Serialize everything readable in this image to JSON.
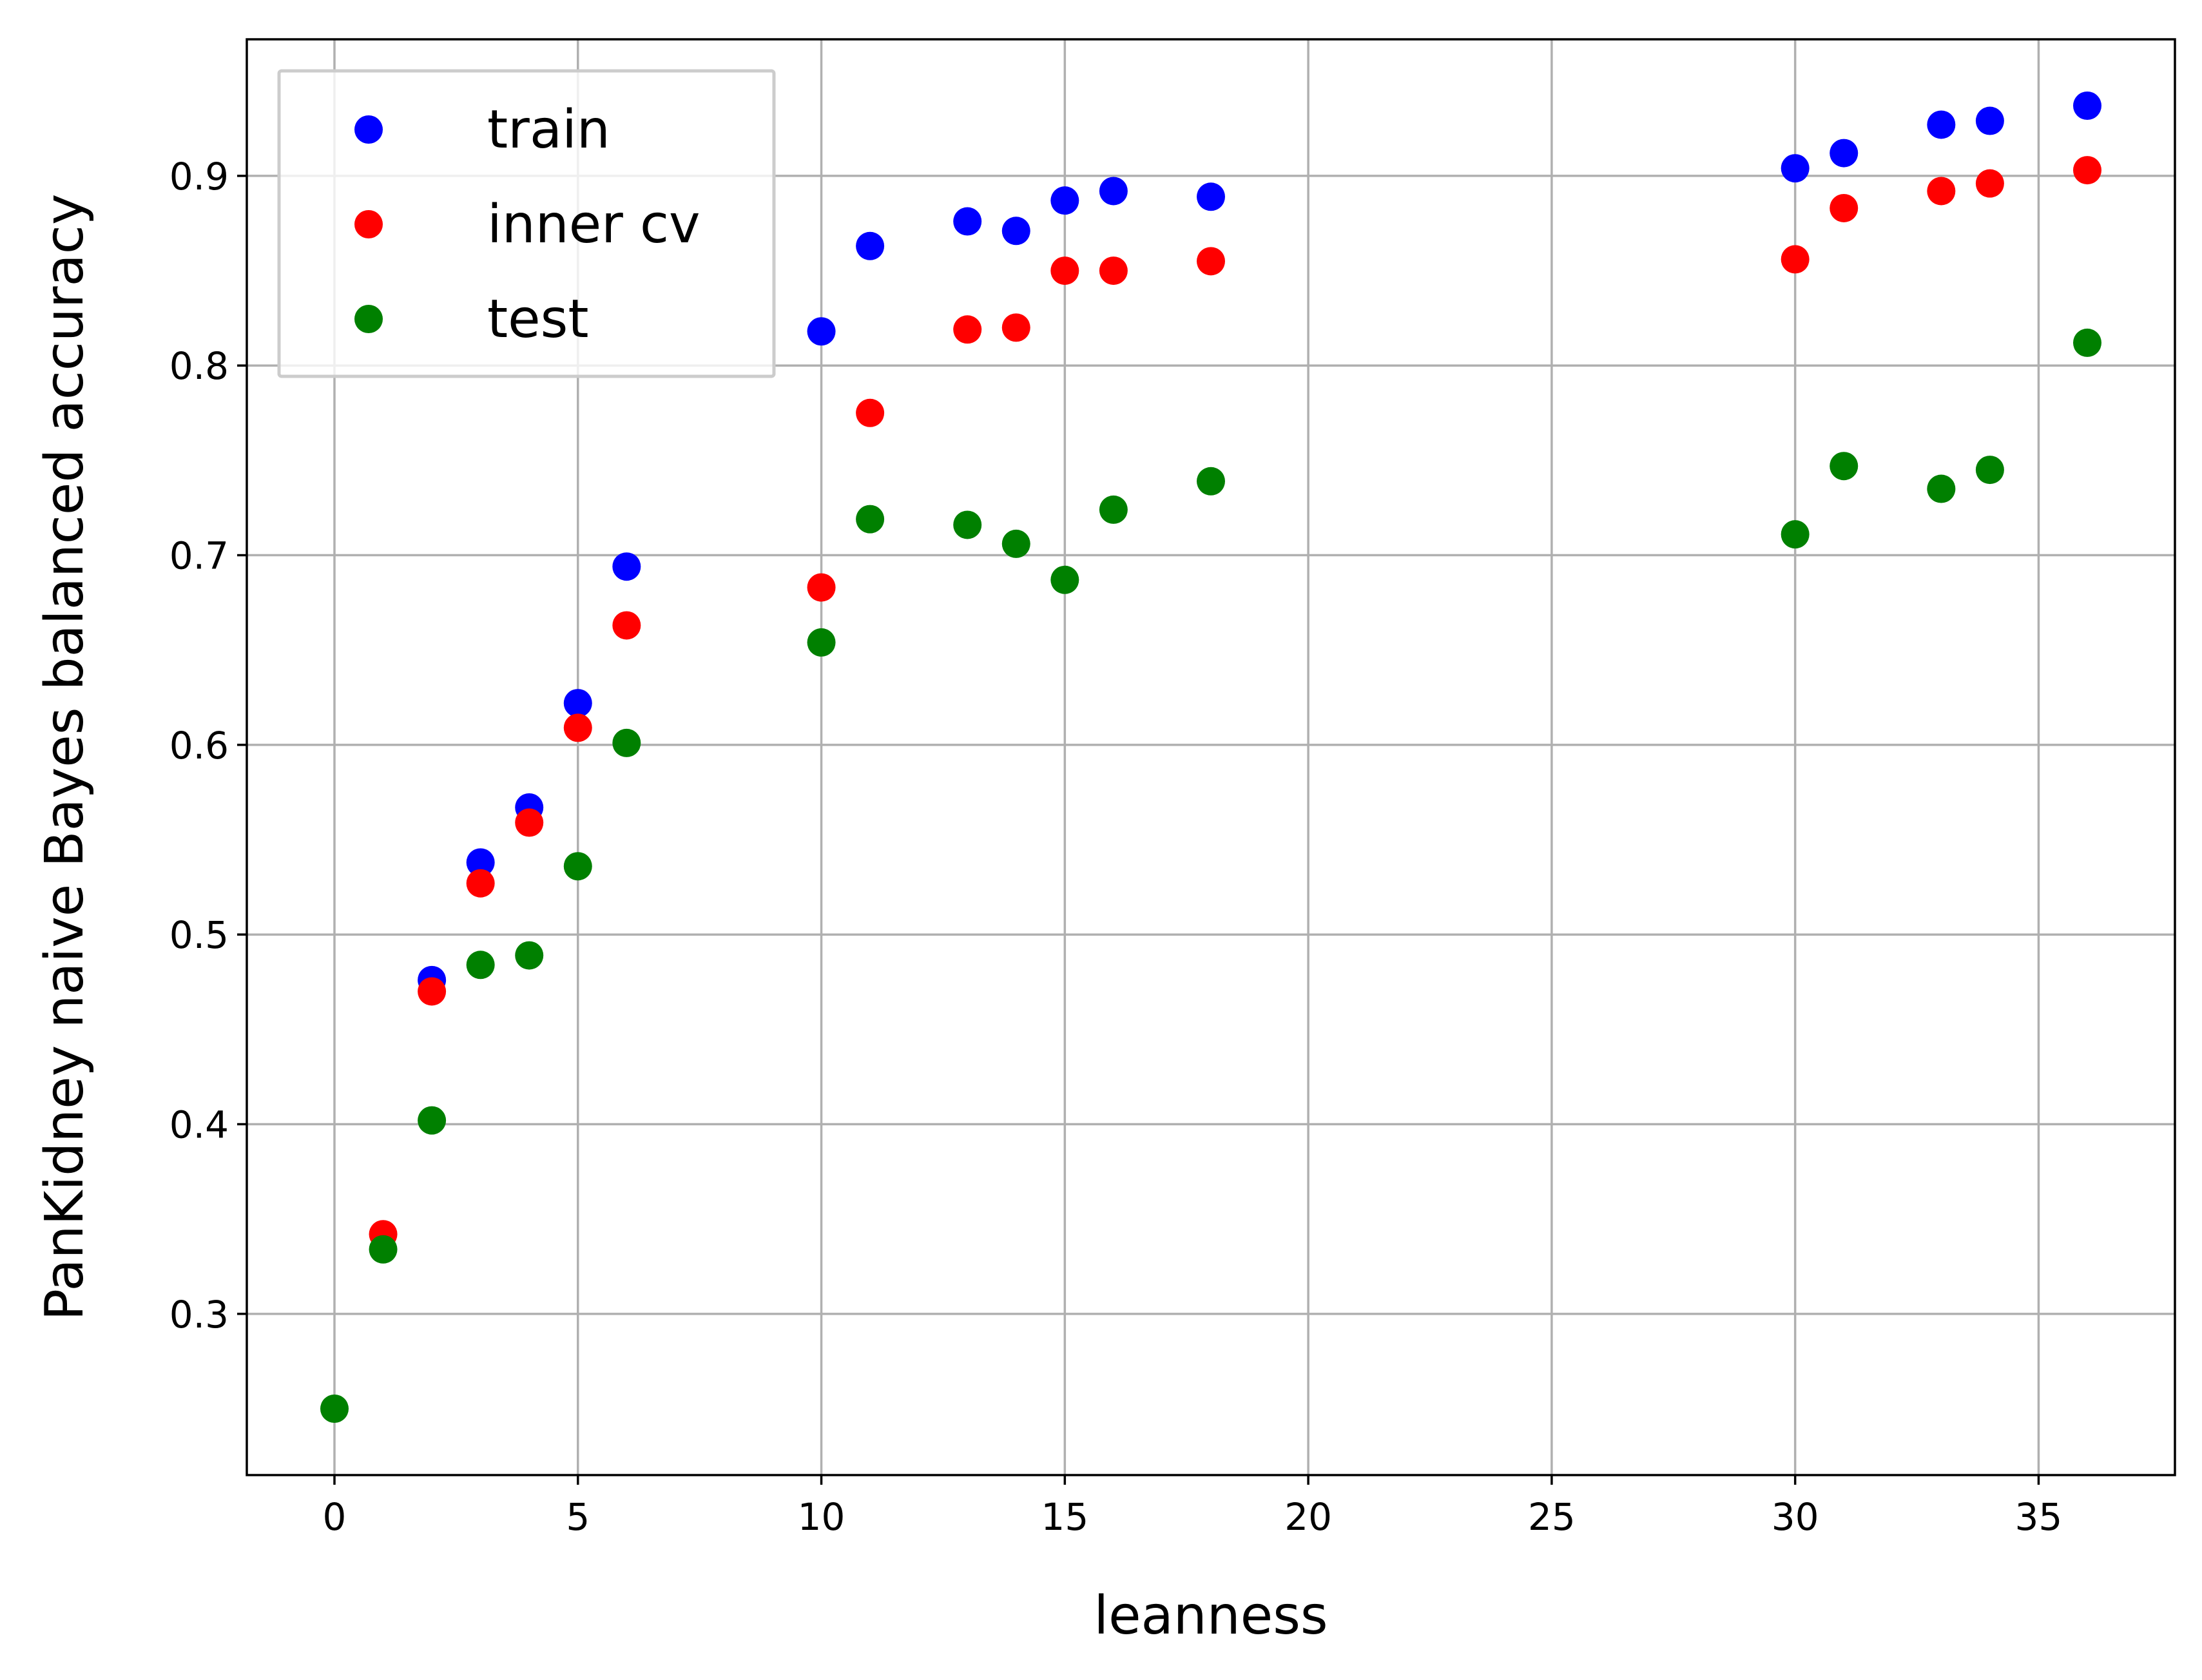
{
  "chart_data": {
    "type": "scatter",
    "title": "",
    "xlabel": "leanness",
    "ylabel": "PanKidney naive Bayes balanced accuracy",
    "xlim": [
      -1.8,
      37.8
    ],
    "ylim": [
      0.215,
      0.972
    ],
    "xticks": [
      0,
      5,
      10,
      15,
      20,
      25,
      30,
      35
    ],
    "yticks": [
      0.3,
      0.4,
      0.5,
      0.6,
      0.7,
      0.8,
      0.9
    ],
    "ytick_labels": [
      "0.3",
      "0.4",
      "0.5",
      "0.6",
      "0.7",
      "0.8",
      "0.9"
    ],
    "grid": true,
    "legend_position": "upper-left",
    "series": [
      {
        "name": "train",
        "color": "#0000ff",
        "points": [
          [
            2,
            0.476
          ],
          [
            3,
            0.538
          ],
          [
            4,
            0.567
          ],
          [
            5,
            0.622
          ],
          [
            6,
            0.694
          ],
          [
            10,
            0.818
          ],
          [
            11,
            0.863
          ],
          [
            13,
            0.876
          ],
          [
            14,
            0.871
          ],
          [
            15,
            0.887
          ],
          [
            16,
            0.892
          ],
          [
            18,
            0.889
          ],
          [
            30,
            0.904
          ],
          [
            31,
            0.912
          ],
          [
            33,
            0.927
          ],
          [
            34,
            0.929
          ],
          [
            36,
            0.937
          ]
        ]
      },
      {
        "name": "inner cv",
        "color": "#ff0000",
        "points": [
          [
            1,
            0.342
          ],
          [
            2,
            0.47
          ],
          [
            3,
            0.527
          ],
          [
            4,
            0.559
          ],
          [
            5,
            0.609
          ],
          [
            6,
            0.663
          ],
          [
            10,
            0.683
          ],
          [
            11,
            0.775
          ],
          [
            13,
            0.819
          ],
          [
            14,
            0.82
          ],
          [
            15,
            0.85
          ],
          [
            16,
            0.85
          ],
          [
            18,
            0.855
          ],
          [
            30,
            0.856
          ],
          [
            31,
            0.883
          ],
          [
            33,
            0.892
          ],
          [
            34,
            0.896
          ],
          [
            36,
            0.903
          ]
        ]
      },
      {
        "name": "test",
        "color": "#008000",
        "points": [
          [
            0,
            0.25
          ],
          [
            1,
            0.334
          ],
          [
            2,
            0.402
          ],
          [
            3,
            0.484
          ],
          [
            4,
            0.489
          ],
          [
            5,
            0.536
          ],
          [
            6,
            0.601
          ],
          [
            10,
            0.654
          ],
          [
            11,
            0.719
          ],
          [
            13,
            0.716
          ],
          [
            14,
            0.706
          ],
          [
            15,
            0.687
          ],
          [
            16,
            0.724
          ],
          [
            18,
            0.739
          ],
          [
            30,
            0.711
          ],
          [
            31,
            0.747
          ],
          [
            33,
            0.735
          ],
          [
            34,
            0.745
          ],
          [
            36,
            0.812
          ]
        ]
      }
    ]
  }
}
